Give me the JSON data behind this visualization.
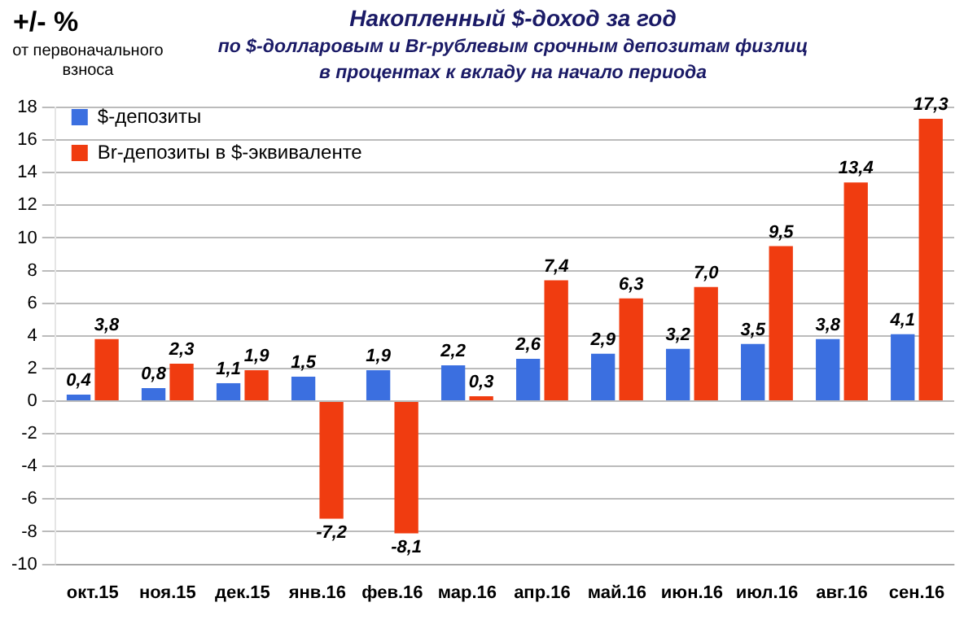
{
  "chart_data": {
    "type": "bar",
    "title": "Накопленный $-доход за год",
    "subtitle": "по $-долларовым и Br-рублевым срочным депозитам физлиц в процентах к вкладу на начало периода",
    "ylabel": "+/- %",
    "annotations": [
      "от первоначального взноса"
    ],
    "categories": [
      "окт.15",
      "ноя.15",
      "дек.15",
      "янв.16",
      "фев.16",
      "мар.16",
      "апр.16",
      "май.16",
      "июн.16",
      "июл.16",
      "авг.16",
      "сен.16"
    ],
    "series": [
      {
        "name": "$-депозиты",
        "color": "#3b6fe0",
        "values": [
          0.4,
          0.8,
          1.1,
          1.5,
          1.9,
          2.2,
          2.6,
          2.9,
          3.2,
          3.5,
          3.8,
          4.1
        ],
        "value_labels": [
          "0,4",
          "0,8",
          "1,1",
          "1,5",
          "1,9",
          "2,2",
          "2,6",
          "2,9",
          "3,2",
          "3,5",
          "3,8",
          "4,1"
        ]
      },
      {
        "name": "Br-депозиты в $-эквиваленте",
        "color": "#f03c10",
        "values": [
          3.8,
          2.3,
          1.9,
          -7.2,
          -8.1,
          0.3,
          7.4,
          6.3,
          7.0,
          9.5,
          13.4,
          17.3
        ],
        "value_labels": [
          "3,8",
          "2,3",
          "1,9",
          "-7,2",
          "-8,1",
          "0,3",
          "7,4",
          "6,3",
          "7,0",
          "9,5",
          "13,4",
          "17,3"
        ]
      }
    ],
    "ylim": [
      -10,
      18
    ],
    "yticks": [
      -10,
      -8,
      -6,
      -4,
      -2,
      0,
      2,
      4,
      6,
      8,
      10,
      12,
      14,
      16,
      18
    ],
    "grid": "y",
    "legend": "top left"
  }
}
